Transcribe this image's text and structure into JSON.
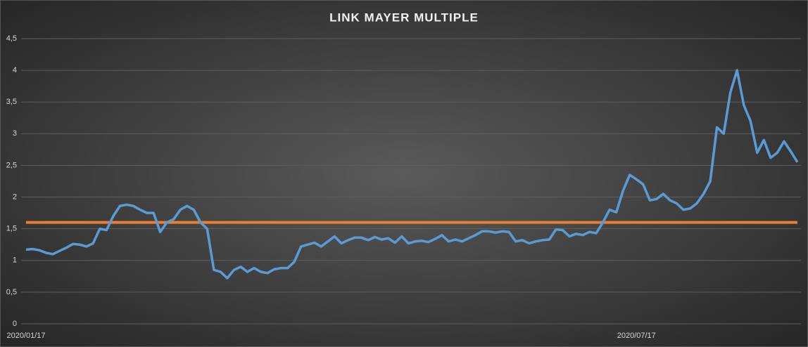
{
  "chart_data": {
    "type": "line",
    "title": "LINK MAYER MULTIPLE",
    "categories": [
      "2020/01/17",
      null,
      null,
      null,
      null,
      null,
      null,
      null,
      null,
      null,
      null,
      null,
      null,
      null,
      null,
      null,
      null,
      null,
      null,
      null,
      null,
      null,
      null,
      null,
      null,
      null,
      null,
      null,
      null,
      null,
      null,
      null,
      null,
      null,
      null,
      null,
      null,
      null,
      null,
      null,
      null,
      null,
      null,
      null,
      null,
      null,
      null,
      null,
      null,
      null,
      null,
      null,
      null,
      null,
      null,
      null,
      null,
      null,
      null,
      null,
      null,
      null,
      null,
      null,
      null,
      null,
      null,
      null,
      null,
      null,
      null,
      null,
      null,
      null,
      null,
      null,
      null,
      null,
      null,
      null,
      null,
      null,
      null,
      null,
      null,
      null,
      null,
      null,
      null,
      null,
      null,
      "2020/07/17",
      null,
      null,
      null,
      null,
      null,
      null,
      null,
      null,
      null,
      null,
      null,
      null,
      null,
      null,
      null,
      null,
      null,
      null,
      null,
      null,
      null,
      null,
      null,
      null
    ],
    "series": [
      {
        "color": "#5b9bd5",
        "values": [
          1.17,
          1.18,
          1.16,
          1.12,
          1.1,
          1.15,
          1.2,
          1.26,
          1.25,
          1.22,
          1.27,
          1.5,
          1.48,
          1.7,
          1.86,
          1.88,
          1.86,
          1.8,
          1.75,
          1.75,
          1.45,
          1.6,
          1.65,
          1.8,
          1.86,
          1.8,
          1.6,
          1.5,
          0.85,
          0.82,
          0.72,
          0.85,
          0.9,
          0.82,
          0.88,
          0.82,
          0.8,
          0.86,
          0.88,
          0.88,
          0.98,
          1.22,
          1.25,
          1.28,
          1.22,
          1.3,
          1.38,
          1.27,
          1.32,
          1.36,
          1.36,
          1.32,
          1.37,
          1.33,
          1.35,
          1.28,
          1.38,
          1.27,
          1.3,
          1.31,
          1.29,
          1.34,
          1.4,
          1.3,
          1.33,
          1.3,
          1.35,
          1.4,
          1.46,
          1.46,
          1.44,
          1.46,
          1.45,
          1.3,
          1.32,
          1.27,
          1.3,
          1.32,
          1.33,
          1.49,
          1.48,
          1.38,
          1.42,
          1.4,
          1.45,
          1.43,
          1.6,
          1.8,
          1.76,
          2.1,
          2.35,
          2.28,
          2.2,
          1.95,
          1.97,
          2.05,
          1.95,
          1.9,
          1.8,
          1.82,
          1.9,
          2.05,
          2.25,
          3.1,
          3.0,
          3.65,
          4.0,
          3.45,
          3.2,
          2.7,
          2.9,
          2.62,
          2.7,
          2.88,
          2.72,
          2.55
        ]
      }
    ],
    "hlines": [
      {
        "value": 1.6,
        "color": "#ed7d31"
      }
    ],
    "ylim": [
      0,
      4.5
    ],
    "yticks": [
      0,
      {
        "value": 0.5,
        "label": "0,5"
      },
      1,
      {
        "value": 1.5,
        "label": "1,5"
      },
      2,
      {
        "value": 2.5,
        "label": "2,5"
      },
      3,
      {
        "value": 3.5,
        "label": "3,5"
      },
      4,
      {
        "value": 4.5,
        "label": "4,5"
      }
    ],
    "grid": true
  }
}
